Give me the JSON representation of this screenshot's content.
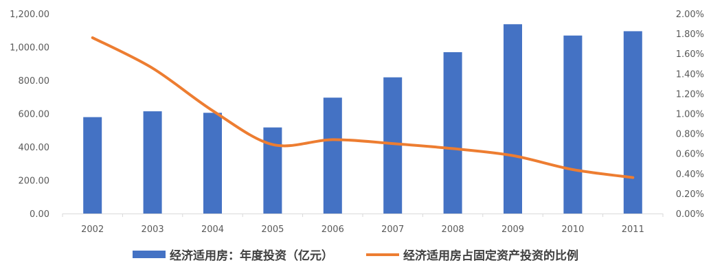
{
  "chart_data": {
    "type": "bar+line",
    "categories": [
      "2002",
      "2003",
      "2004",
      "2005",
      "2006",
      "2007",
      "2008",
      "2009",
      "2010",
      "2011"
    ],
    "series": [
      {
        "name": "经济适用房：年度投资（亿元）",
        "type": "bar",
        "axis": "left",
        "color": "#4472C4",
        "values": [
          579,
          614,
          605,
          517,
          696,
          818,
          969,
          1137,
          1069,
          1095
        ]
      },
      {
        "name": "经济适用房占固定资产投资的比例",
        "type": "line",
        "axis": "right",
        "color": "#ED7D31",
        "smooth": true,
        "values": [
          1.76,
          1.455,
          1.03,
          0.69,
          0.74,
          0.7,
          0.65,
          0.58,
          0.44,
          0.36
        ]
      }
    ],
    "left_axis": {
      "min": 0,
      "max": 1200,
      "step": 200,
      "ticks": [
        "0.00",
        "200.00",
        "400.00",
        "600.00",
        "800.00",
        "1,000.00",
        "1,200.00"
      ]
    },
    "right_axis": {
      "min": 0,
      "max": 2,
      "step": 0.2,
      "unit": "%",
      "ticks": [
        "0.00%",
        "0.20%",
        "0.40%",
        "0.60%",
        "0.80%",
        "1.00%",
        "1.20%",
        "1.40%",
        "1.60%",
        "1.80%",
        "2.00%"
      ]
    },
    "grid": false,
    "legend_position": "bottom"
  }
}
